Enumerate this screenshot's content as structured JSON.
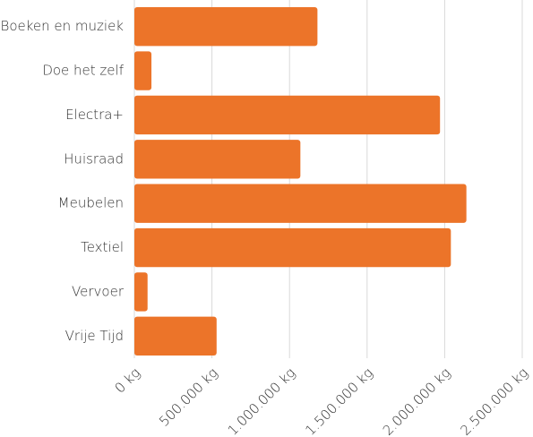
{
  "chart_data": {
    "type": "bar",
    "orientation": "horizontal",
    "categories": [
      "Boeken en muziek",
      "Doe het zelf",
      "Electra+",
      "Huisraad",
      "Meubelen",
      "Textiel",
      "Vervoer",
      "Vrije Tijd"
    ],
    "values": [
      1180000,
      110000,
      1970000,
      1070000,
      2140000,
      2040000,
      85000,
      530000
    ],
    "color": "#ec7429",
    "xlim": [
      0,
      2500000
    ],
    "xticks": [
      {
        "value": 0,
        "label": "0 kg"
      },
      {
        "value": 500000,
        "label": "500.000 kg"
      },
      {
        "value": 1000000,
        "label": "1.000.000 kg"
      },
      {
        "value": 1500000,
        "label": "1.500.000 kg"
      },
      {
        "value": 2000000,
        "label": "2.000.000 kg"
      },
      {
        "value": 2500000,
        "label": "2.500.000 kg"
      }
    ],
    "grid": true
  }
}
